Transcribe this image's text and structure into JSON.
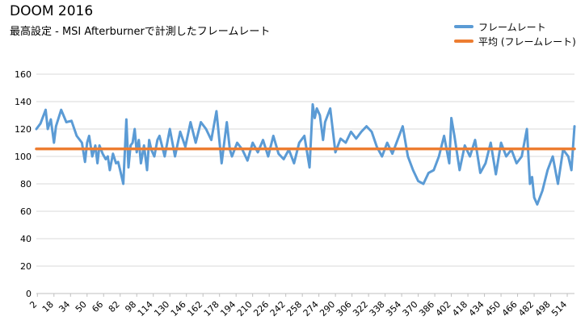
{
  "chart_data": {
    "type": "line",
    "title": "DOOM 2016",
    "subtitle": "最高設定 - MSI Afterburnerで計測したフレームレート",
    "ylim": [
      0,
      160
    ],
    "yticks": [
      0,
      20,
      40,
      60,
      80,
      100,
      120,
      140,
      160
    ],
    "xticks": [
      2,
      18,
      34,
      50,
      66,
      82,
      98,
      114,
      130,
      146,
      162,
      178,
      194,
      210,
      226,
      242,
      258,
      274,
      290,
      306,
      322,
      338,
      354,
      370,
      386,
      402,
      418,
      434,
      450,
      466,
      482,
      498,
      514
    ],
    "xlim": [
      1,
      521
    ],
    "grid": true,
    "legend_position": "top-right",
    "colors": {
      "fps": "#5b9bd5",
      "avg": "#ed7d31"
    },
    "series": [
      {
        "name": "フレームレート",
        "x": [
          1,
          5,
          10,
          12,
          15,
          18,
          20,
          25,
          30,
          35,
          40,
          45,
          48,
          50,
          52,
          55,
          58,
          60,
          62,
          65,
          68,
          70,
          72,
          75,
          78,
          80,
          82,
          85,
          88,
          90,
          92,
          94,
          96,
          98,
          100,
          102,
          105,
          108,
          110,
          112,
          115,
          118,
          120,
          125,
          130,
          135,
          140,
          145,
          150,
          155,
          160,
          165,
          170,
          175,
          180,
          185,
          188,
          190,
          195,
          200,
          205,
          210,
          215,
          220,
          225,
          230,
          235,
          240,
          245,
          250,
          255,
          260,
          265,
          268,
          270,
          272,
          275,
          278,
          280,
          285,
          290,
          295,
          300,
          305,
          310,
          315,
          320,
          325,
          330,
          335,
          340,
          345,
          350,
          355,
          360,
          365,
          370,
          375,
          380,
          385,
          390,
          395,
          400,
          402,
          405,
          410,
          415,
          420,
          425,
          430,
          435,
          440,
          445,
          450,
          455,
          460,
          465,
          470,
          475,
          478,
          480,
          482,
          485,
          490,
          495,
          500,
          505,
          510,
          515,
          518,
          521
        ],
        "values": [
          120,
          124,
          134,
          120,
          127,
          110,
          122,
          134,
          125,
          126,
          115,
          110,
          96,
          110,
          115,
          100,
          108,
          95,
          108,
          102,
          98,
          100,
          90,
          102,
          95,
          96,
          90,
          80,
          127,
          92,
          108,
          110,
          120,
          103,
          112,
          95,
          108,
          90,
          112,
          105,
          100,
          112,
          115,
          100,
          120,
          100,
          118,
          107,
          125,
          110,
          125,
          120,
          112,
          133,
          95,
          125,
          105,
          100,
          110,
          105,
          97,
          110,
          103,
          112,
          100,
          115,
          102,
          98,
          105,
          95,
          110,
          115,
          92,
          138,
          128,
          135,
          130,
          112,
          125,
          135,
          103,
          113,
          110,
          118,
          113,
          118,
          122,
          118,
          107,
          100,
          110,
          102,
          112,
          122,
          100,
          90,
          82,
          80,
          88,
          90,
          100,
          115,
          95,
          128,
          115,
          90,
          108,
          100,
          112,
          88,
          95,
          110,
          87,
          110,
          100,
          105,
          95,
          100,
          120,
          80,
          85,
          70,
          65,
          75,
          90,
          100,
          80,
          105,
          100,
          90,
          122
        ],
        "style": "line"
      },
      {
        "name": "平均 (フレームレート)",
        "x": [
          1,
          521
        ],
        "values": [
          105.5,
          105.5
        ],
        "style": "line"
      }
    ]
  }
}
